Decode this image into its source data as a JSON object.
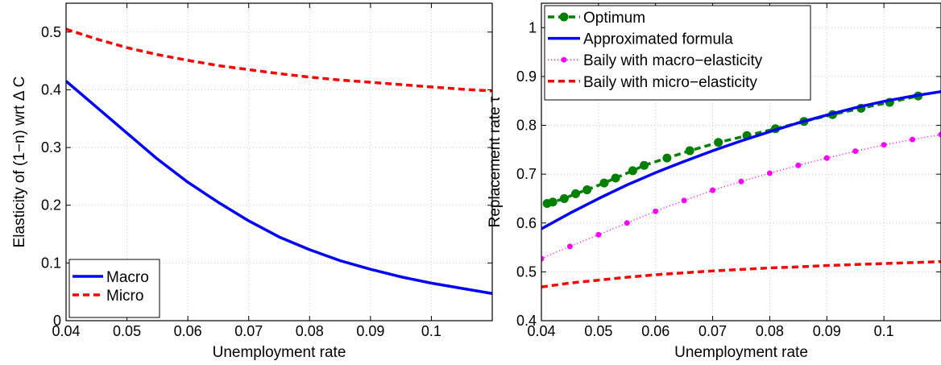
{
  "chart_data": [
    {
      "type": "line",
      "xlabel": "Unemployment rate",
      "ylabel": "Elasticity of (1−n) wrt Δ C",
      "xlim": [
        0.04,
        0.11
      ],
      "ylim": [
        0,
        0.55
      ],
      "xticks": [
        "0.04",
        "0.05",
        "0.06",
        "0.07",
        "0.08",
        "0.09",
        "0.1"
      ],
      "yticks": [
        "0",
        "0.1",
        "0.2",
        "0.3",
        "0.4",
        "0.5"
      ],
      "grid": true,
      "legend_position": "bottom-left",
      "series": [
        {
          "name": "Macro",
          "color": "#0000ff",
          "style": "solid",
          "x": [
            0.04,
            0.045,
            0.05,
            0.055,
            0.06,
            0.065,
            0.07,
            0.075,
            0.08,
            0.085,
            0.09,
            0.095,
            0.1,
            0.105,
            0.11
          ],
          "y": [
            0.415,
            0.37,
            0.325,
            0.28,
            0.24,
            0.205,
            0.173,
            0.145,
            0.123,
            0.104,
            0.089,
            0.076,
            0.065,
            0.056,
            0.047
          ]
        },
        {
          "name": "Micro",
          "color": "#ff0000",
          "style": "dashed",
          "x": [
            0.04,
            0.045,
            0.05,
            0.055,
            0.06,
            0.065,
            0.07,
            0.075,
            0.08,
            0.085,
            0.09,
            0.095,
            0.1,
            0.105,
            0.11
          ],
          "y": [
            0.505,
            0.488,
            0.473,
            0.461,
            0.451,
            0.442,
            0.435,
            0.428,
            0.422,
            0.417,
            0.413,
            0.409,
            0.405,
            0.401,
            0.398
          ]
        }
      ]
    },
    {
      "type": "line",
      "xlabel": "Unemployment rate",
      "ylabel": "Replacement rate τ",
      "xlim": [
        0.04,
        0.11
      ],
      "ylim": [
        0.4,
        1.05
      ],
      "xticks": [
        "0.04",
        "0.05",
        "0.06",
        "0.07",
        "0.08",
        "0.09",
        "0.1"
      ],
      "yticks": [
        "0.4",
        "0.5",
        "0.6",
        "0.7",
        "0.8",
        "0.9",
        "1"
      ],
      "grid": true,
      "legend_position": "top-left",
      "series": [
        {
          "name": "Optimum",
          "color": "#008000",
          "style": "dashed-with-circles",
          "x": [
            0.041,
            0.042,
            0.044,
            0.046,
            0.048,
            0.051,
            0.053,
            0.056,
            0.058,
            0.062,
            0.066,
            0.071,
            0.076,
            0.081,
            0.086,
            0.091,
            0.096,
            0.101,
            0.106
          ],
          "y": [
            0.64,
            0.643,
            0.65,
            0.66,
            0.668,
            0.682,
            0.692,
            0.707,
            0.718,
            0.733,
            0.748,
            0.765,
            0.779,
            0.793,
            0.808,
            0.822,
            0.835,
            0.847,
            0.86
          ]
        },
        {
          "name": "Approximated formula",
          "color": "#0000ff",
          "style": "solid",
          "x": [
            0.04,
            0.045,
            0.05,
            0.055,
            0.06,
            0.065,
            0.07,
            0.075,
            0.08,
            0.085,
            0.09,
            0.095,
            0.1,
            0.105,
            0.11
          ],
          "y": [
            0.588,
            0.62,
            0.65,
            0.678,
            0.703,
            0.726,
            0.748,
            0.768,
            0.787,
            0.805,
            0.821,
            0.836,
            0.849,
            0.86,
            0.869
          ]
        },
        {
          "name": "Baily with macro−elasticity",
          "color": "#ff00ff",
          "style": "dotted-with-points",
          "x": [
            0.04,
            0.045,
            0.05,
            0.055,
            0.06,
            0.065,
            0.07,
            0.075,
            0.08,
            0.085,
            0.09,
            0.095,
            0.1,
            0.105,
            0.11
          ],
          "y": [
            0.527,
            0.552,
            0.576,
            0.6,
            0.624,
            0.646,
            0.667,
            0.685,
            0.702,
            0.718,
            0.733,
            0.747,
            0.76,
            0.771,
            0.781
          ]
        },
        {
          "name": "Baily with micro−elasticity",
          "color": "#ff0000",
          "style": "dashed",
          "x": [
            0.04,
            0.045,
            0.05,
            0.055,
            0.06,
            0.065,
            0.07,
            0.075,
            0.08,
            0.085,
            0.09,
            0.095,
            0.1,
            0.105,
            0.11
          ],
          "y": [
            0.469,
            0.477,
            0.483,
            0.489,
            0.494,
            0.498,
            0.502,
            0.505,
            0.508,
            0.51,
            0.513,
            0.515,
            0.517,
            0.519,
            0.521
          ]
        }
      ]
    }
  ]
}
